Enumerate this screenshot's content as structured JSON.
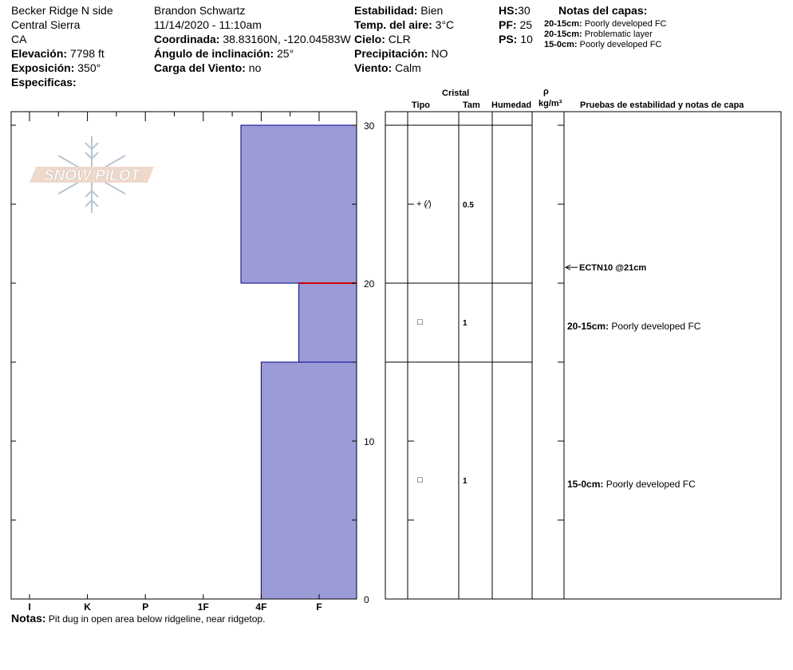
{
  "header": {
    "location": "Becker Ridge N side",
    "range": "Central Sierra",
    "state": "CA",
    "elevation_label": "Elevación:",
    "elevation_value": "7798 ft",
    "aspect_label": "Exposición:",
    "aspect_value": "350°",
    "specifics_label": "Especificas:",
    "observer": "Brandon Schwartz",
    "datetime": "11/14/2020 - 11:10am",
    "coord_label": "Coordinada:",
    "coord_value": "38.83160N, -120.04583W",
    "slope_label": "Ángulo de inclinación:",
    "slope_value": "25°",
    "wind_load_label": "Carga del Viento:",
    "wind_load_value": "no",
    "stability_label": "Estabilidad:",
    "stability_value": "Bien",
    "air_temp_label": "Temp. del aire:",
    "air_temp_value": "3°C",
    "sky_label": "Cielo:",
    "sky_value": "CLR",
    "precip_label": "Precipitación:",
    "precip_value": "NO",
    "wind_label": "Viento:",
    "wind_value": "Calm",
    "hs_label": "HS:",
    "hs_value": "30",
    "pf_label": "PF:",
    "pf_value": "25",
    "ps_label": "PS:",
    "ps_value": "10",
    "layer_notes_title": "Notas del capas:",
    "layer_notes": [
      {
        "range": "20-15cm:",
        "text": "Poorly developed FC"
      },
      {
        "range": "20-15cm:",
        "text": "Problematic layer"
      },
      {
        "range": "15-0cm:",
        "text": "Poorly developed FC"
      }
    ]
  },
  "logo_text": "SNOW PILOT",
  "table_headers": {
    "cristal": "Cristal",
    "tipo": "Tipo",
    "tam": "Tam",
    "humedad": "Humedad",
    "rho": "ρ",
    "density_unit": "kg/m³",
    "pruebas": "Pruebas de estabilidad y notas de capa"
  },
  "layers_table": [
    {
      "tipo": "+ (⁄)",
      "tam": "0.5",
      "note_range": "",
      "note_text": ""
    },
    {
      "tipo": "□",
      "tam": "1",
      "note_range": "20-15cm:",
      "note_text": "Poorly developed FC"
    },
    {
      "tipo": "□",
      "tam": "1",
      "note_range": "15-0cm:",
      "note_text": "Poorly developed FC"
    }
  ],
  "stability_test": "ECTN10 @21cm",
  "notes_label": "Notas:",
  "notes_text": "Pit dug in open area below ridgeline, near ridgetop.",
  "colors": {
    "layer_fill": "#9b9bd7",
    "layer_edge": "#00008b",
    "problem_line": "#cc0000"
  },
  "chart_data": {
    "type": "bar",
    "orientation": "horizontal",
    "title": "",
    "xlabel": "",
    "ylabel": "",
    "x_categories": [
      "I",
      "K",
      "P",
      "1F",
      "4F",
      "F"
    ],
    "ylim": [
      0,
      30
    ],
    "y_ticks": [
      0,
      10,
      20,
      30
    ],
    "layers": [
      {
        "top": 30,
        "bottom": 20,
        "hardness": "1F-4F",
        "hardness_index": 3.65
      },
      {
        "top": 20,
        "bottom": 15,
        "hardness": "4F-F",
        "hardness_index": 4.65
      },
      {
        "top": 15,
        "bottom": 0,
        "hardness": "4F",
        "hardness_index": 4.0
      }
    ],
    "problem_layer_depth": 20,
    "stability_test_depth": 21,
    "table_boundaries": [
      30,
      20,
      15,
      0
    ]
  }
}
